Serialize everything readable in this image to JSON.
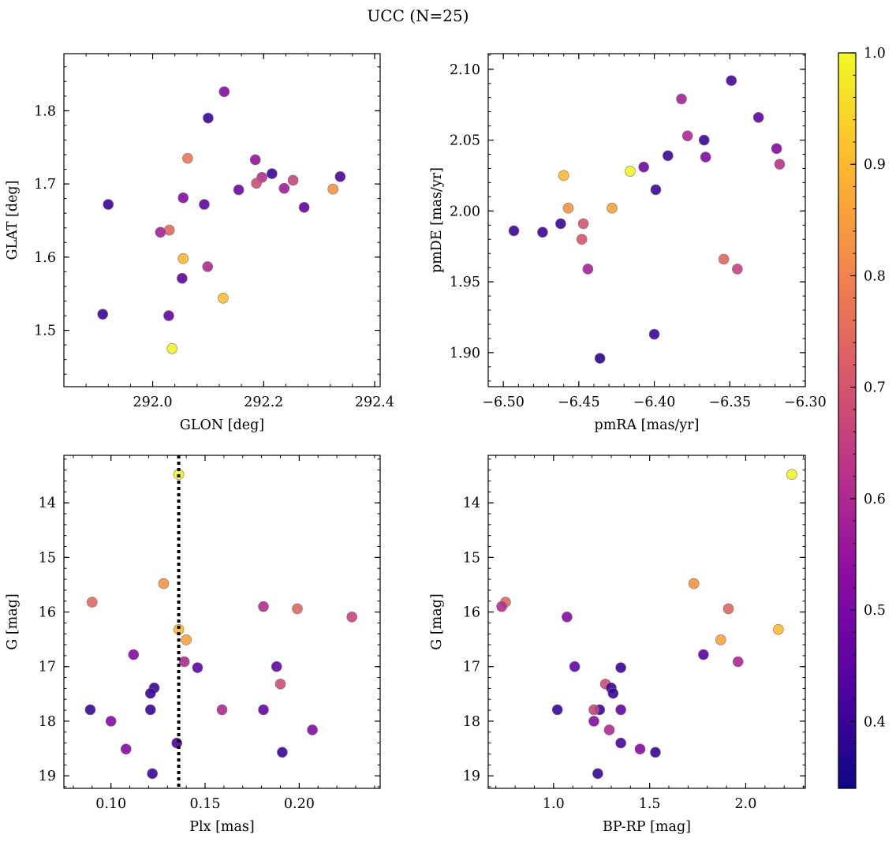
{
  "figure": {
    "title": "UCC (N=25)"
  },
  "colorbar": {
    "cmap": "plasma",
    "range": [
      0.34,
      1.0
    ],
    "ticks": [
      0.4,
      0.5,
      0.6,
      0.7,
      0.8,
      0.9,
      1.0
    ],
    "tick_labels": [
      "0.4",
      "0.5",
      "0.6",
      "0.7",
      "0.8",
      "0.9",
      "1.0"
    ]
  },
  "chart_data": [
    {
      "type": "scatter",
      "title": "",
      "xlabel": "GLON [deg]",
      "ylabel": "GLAT [deg]",
      "xlim": [
        291.84,
        292.41
      ],
      "ylim": [
        1.423,
        1.878
      ],
      "yinvert": false,
      "xticks": [
        292.0,
        292.2,
        292.4
      ],
      "xtick_labels": [
        "292.0",
        "292.2",
        "292.4"
      ],
      "yticks": [
        1.5,
        1.6,
        1.7,
        1.8
      ],
      "ytick_labels": [
        "1.5",
        "1.6",
        "1.7",
        "1.8"
      ],
      "x": [
        292.129,
        292.1,
        292.063,
        292.185,
        292.215,
        292.197,
        292.187,
        292.338,
        292.253,
        292.237,
        292.155,
        292.055,
        292.325,
        291.92,
        292.093,
        292.273,
        292.03,
        292.014,
        292.055,
        292.099,
        292.053,
        292.127,
        291.91,
        292.029,
        292.035
      ],
      "y": [
        1.826,
        1.79,
        1.735,
        1.733,
        1.714,
        1.709,
        1.701,
        1.71,
        1.705,
        1.694,
        1.692,
        1.681,
        1.693,
        1.672,
        1.672,
        1.668,
        1.637,
        1.634,
        1.598,
        1.587,
        1.571,
        1.544,
        1.522,
        1.52,
        1.475
      ],
      "color_values": [
        0.52,
        0.4,
        0.77,
        0.55,
        0.4,
        0.61,
        0.68,
        0.42,
        0.66,
        0.57,
        0.48,
        0.52,
        0.83,
        0.4,
        0.46,
        0.46,
        0.74,
        0.58,
        0.9,
        0.6,
        0.45,
        0.91,
        0.4,
        0.46,
        0.99
      ]
    },
    {
      "type": "scatter",
      "title": "",
      "xlabel": "pmRA [mas/yr]",
      "ylabel": "pmDE [mas/yr]",
      "xlim": [
        -6.51,
        -6.3
      ],
      "ylim": [
        1.876,
        2.111
      ],
      "yinvert": false,
      "xticks": [
        -6.5,
        -6.45,
        -6.4,
        -6.35,
        -6.3
      ],
      "xtick_labels": [
        "−6.50",
        "−6.45",
        "−6.40",
        "−6.35",
        "−6.30"
      ],
      "yticks": [
        1.9,
        1.95,
        2.0,
        2.05,
        2.1
      ],
      "ytick_labels": [
        "1.90",
        "1.95",
        "2.00",
        "2.05",
        "2.10"
      ],
      "x": [
        -6.349,
        -6.382,
        -6.331,
        -6.378,
        -6.367,
        -6.319,
        -6.391,
        -6.317,
        -6.366,
        -6.407,
        -6.416,
        -6.46,
        -6.399,
        -6.457,
        -6.428,
        -6.493,
        -6.474,
        -6.462,
        -6.447,
        -6.448,
        -6.354,
        -6.345,
        -6.444,
        -6.4,
        -6.436
      ],
      "y": [
        2.092,
        2.079,
        2.066,
        2.053,
        2.05,
        2.044,
        2.039,
        2.033,
        2.038,
        2.031,
        2.028,
        2.025,
        2.015,
        2.002,
        2.002,
        1.986,
        1.985,
        1.991,
        1.991,
        1.98,
        1.966,
        1.959,
        1.959,
        1.913,
        1.896
      ],
      "color_values": [
        0.42,
        0.58,
        0.45,
        0.6,
        0.4,
        0.52,
        0.4,
        0.62,
        0.52,
        0.48,
        0.99,
        0.9,
        0.4,
        0.83,
        0.86,
        0.4,
        0.4,
        0.4,
        0.7,
        0.7,
        0.74,
        0.66,
        0.58,
        0.4,
        0.38
      ]
    },
    {
      "type": "scatter",
      "title": "",
      "xlabel": "Plx [mas]",
      "ylabel": "G [mag]",
      "xlim": [
        0.075,
        0.243
      ],
      "ylim": [
        13.13,
        19.23
      ],
      "yinvert": true,
      "vline": {
        "x": 0.136,
        "style": "dotted",
        "color": "#000000"
      },
      "xticks": [
        0.1,
        0.15,
        0.2
      ],
      "xtick_labels": [
        "0.10",
        "0.15",
        "0.20"
      ],
      "yticks": [
        14,
        15,
        16,
        17,
        18,
        19
      ],
      "ytick_labels": [
        "14",
        "15",
        "16",
        "17",
        "18",
        "19"
      ],
      "x": [
        0.136,
        0.128,
        0.09,
        0.181,
        0.199,
        0.228,
        0.136,
        0.14,
        0.139,
        0.112,
        0.146,
        0.188,
        0.19,
        0.123,
        0.121,
        0.089,
        0.121,
        0.159,
        0.181,
        0.1,
        0.207,
        0.108,
        0.135,
        0.191,
        0.122
      ],
      "y": [
        13.48,
        15.48,
        15.82,
        15.9,
        15.94,
        16.09,
        16.32,
        16.51,
        16.91,
        16.78,
        17.02,
        17.0,
        17.32,
        17.39,
        17.49,
        17.79,
        17.79,
        17.79,
        17.79,
        18.0,
        18.16,
        18.51,
        18.4,
        18.57,
        18.96
      ],
      "color_values": [
        0.99,
        0.83,
        0.74,
        0.61,
        0.74,
        0.66,
        0.9,
        0.86,
        0.6,
        0.52,
        0.45,
        0.46,
        0.68,
        0.4,
        0.4,
        0.4,
        0.4,
        0.6,
        0.46,
        0.52,
        0.52,
        0.52,
        0.42,
        0.4,
        0.4
      ]
    },
    {
      "type": "scatter",
      "title": "",
      "xlabel": "BP-RP [mag]",
      "ylabel": "G [mag]",
      "xlim": [
        0.66,
        2.31
      ],
      "ylim": [
        13.13,
        19.23
      ],
      "yinvert": true,
      "xticks": [
        1.0,
        1.5,
        2.0
      ],
      "xtick_labels": [
        "1.0",
        "1.5",
        "2.0"
      ],
      "yticks": [
        14,
        15,
        16,
        17,
        18,
        19
      ],
      "ytick_labels": [
        "14",
        "15",
        "16",
        "17",
        "18",
        "19"
      ],
      "x": [
        2.24,
        1.73,
        0.75,
        0.73,
        1.91,
        1.07,
        2.17,
        1.87,
        1.96,
        1.78,
        1.11,
        1.35,
        1.27,
        1.3,
        1.31,
        1.02,
        1.24,
        1.21,
        1.35,
        1.21,
        1.29,
        1.45,
        1.35,
        1.53,
        1.23
      ],
      "y": [
        13.48,
        15.48,
        15.82,
        15.9,
        15.94,
        16.09,
        16.32,
        16.51,
        16.91,
        16.78,
        17.0,
        17.02,
        17.32,
        17.39,
        17.49,
        17.79,
        17.79,
        17.79,
        17.79,
        18.0,
        18.16,
        18.51,
        18.4,
        18.57,
        18.96
      ],
      "color_values": [
        0.99,
        0.83,
        0.74,
        0.61,
        0.74,
        0.52,
        0.9,
        0.86,
        0.6,
        0.45,
        0.46,
        0.4,
        0.68,
        0.4,
        0.4,
        0.4,
        0.4,
        0.66,
        0.46,
        0.52,
        0.6,
        0.52,
        0.42,
        0.4,
        0.4
      ]
    }
  ]
}
